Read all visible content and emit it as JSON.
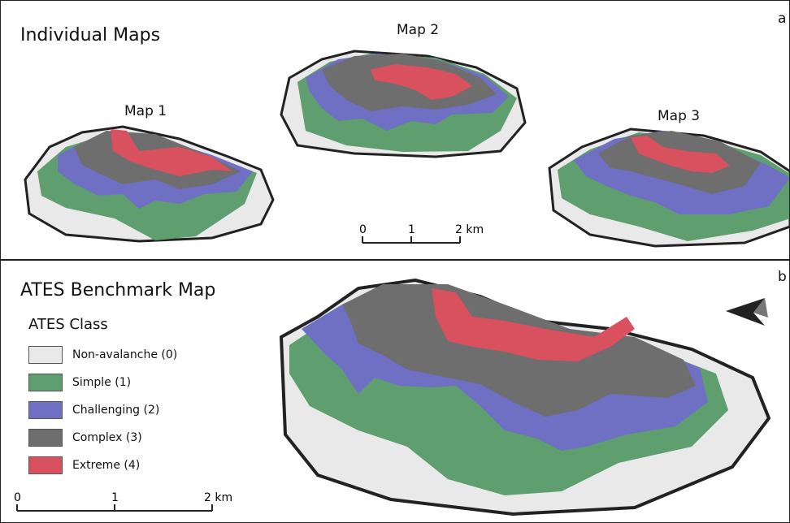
{
  "panel_a": {
    "heading": "Individual Maps",
    "letter": "a",
    "map_labels": [
      "Map 1",
      "Map 2",
      "Map 3"
    ],
    "scale_bar": {
      "ticks": [
        "0",
        "1",
        "2 km"
      ]
    }
  },
  "panel_b": {
    "heading": "ATES Benchmark Map",
    "letter": "b",
    "legend": {
      "title": "ATES Class",
      "items": [
        {
          "label": "Non-avalanche (0)",
          "color": "#e9e9e9"
        },
        {
          "label": "Simple (1)",
          "color": "#5f9e6e"
        },
        {
          "label": "Challenging (2)",
          "color": "#6f6fc4"
        },
        {
          "label": "Complex (3)",
          "color": "#6e6e6e"
        },
        {
          "label": "Extreme (4)",
          "color": "#d9505e"
        }
      ]
    },
    "scale_bar": {
      "ticks": [
        "0",
        "1",
        "2 km"
      ]
    },
    "north_arrow": "north-arrow-icon"
  }
}
